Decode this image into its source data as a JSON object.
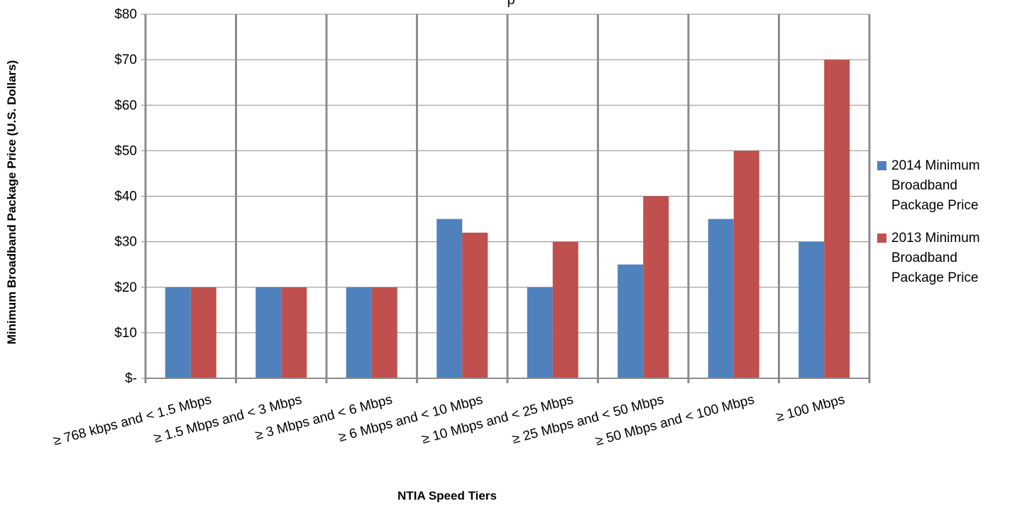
{
  "chart_data": {
    "type": "bar",
    "title": "",
    "title_visible_fragment": "p",
    "xlabel": "NTIA Speed Tiers",
    "ylabel": "Minimum Broadband Package Price (U.S. Dollars)",
    "categories": [
      "≥ 768 kbps and < 1.5 Mbps",
      "≥ 1.5 Mbps and < 3 Mbps",
      "≥ 3 Mbps and < 6 Mbps",
      "≥ 6 Mbps and < 10 Mbps",
      "≥ 10 Mbps and < 25 Mbps",
      "≥ 25 Mbps and < 50 Mbps",
      "≥ 50 Mbps  and < 100 Mbps",
      "≥ 100 Mbps"
    ],
    "series": [
      {
        "name": "2014 Minimum Broadband Package Price",
        "color": "#4f81bd",
        "values": [
          20,
          20,
          20,
          35,
          20,
          25,
          35,
          30
        ]
      },
      {
        "name": "2013 Minimum Broadband Package Price",
        "color": "#c0504d",
        "values": [
          20,
          20,
          20,
          32,
          30,
          40,
          50,
          70
        ]
      }
    ],
    "ylim": [
      0,
      80
    ],
    "yticks": [
      {
        "value": 0,
        "label": "$-"
      },
      {
        "value": 10,
        "label": "$10"
      },
      {
        "value": 20,
        "label": "$20"
      },
      {
        "value": 30,
        "label": "$30"
      },
      {
        "value": 40,
        "label": "$40"
      },
      {
        "value": 50,
        "label": "$50"
      },
      {
        "value": 60,
        "label": "$60"
      },
      {
        "value": 70,
        "label": "$70"
      },
      {
        "value": 80,
        "label": "$80"
      }
    ],
    "grid": true,
    "legend_position": "right"
  },
  "legend": {
    "items": [
      {
        "line1": "2014 Minimum",
        "line2": "Broadband",
        "line3": "Package Price",
        "color": "#4f81bd"
      },
      {
        "line1": "2013 Minimum",
        "line2": "Broadband",
        "line3": "Package Price",
        "color": "#c0504d"
      }
    ]
  }
}
